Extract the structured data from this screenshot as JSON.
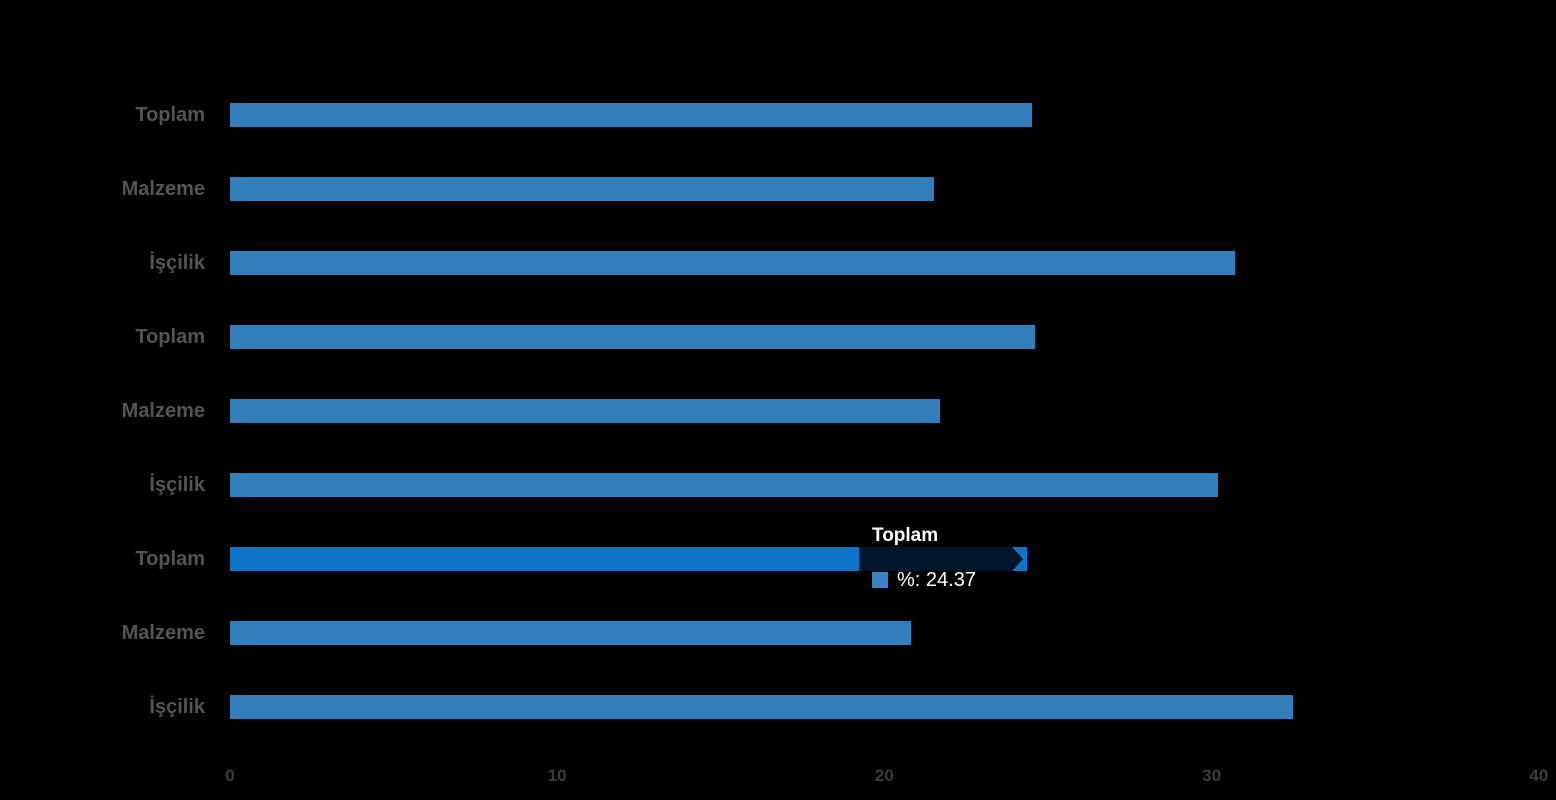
{
  "background_color": "#000000",
  "chart_data": {
    "type": "bar",
    "orientation": "horizontal",
    "title": "",
    "xlabel": "",
    "ylabel": "",
    "categories": [
      "Toplam",
      "Malzeme",
      "İşçilik",
      "Toplam",
      "Malzeme",
      "İşçilik",
      "Toplam",
      "Malzeme",
      "İşçilik"
    ],
    "series": [
      {
        "name": "%",
        "values": [
          24.5,
          21.5,
          30.7,
          24.6,
          21.7,
          30.2,
          24.37,
          20.8,
          32.5
        ]
      }
    ],
    "highlighted_index": 6,
    "xlim": [
      0,
      40
    ],
    "x_ticks": [
      "0",
      "10",
      "20",
      "30",
      "40"
    ],
    "x_tick_values": [
      0,
      10,
      20,
      30,
      40
    ],
    "grid": false,
    "legend_position": "none",
    "bar_color": "#327EBB",
    "highlight_color": "#0E74C8",
    "label_color": "#545454",
    "tick_color": "#3C3C3C"
  },
  "tooltip": {
    "title": "Toplam",
    "series_name": "%",
    "value": "24.37",
    "text": "%: 24.37",
    "marker_color": "#3C83C8",
    "text_color": "#ffffff"
  }
}
